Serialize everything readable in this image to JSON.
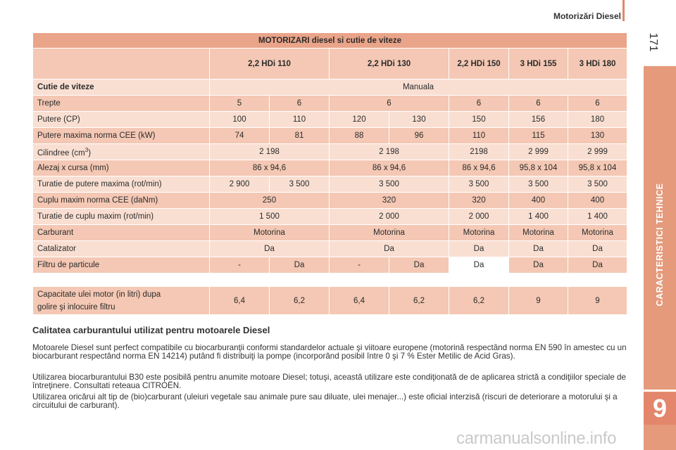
{
  "header": {
    "title": "Motorizări Diesel",
    "page_number": "171"
  },
  "side_tab": {
    "label": "CARACTERISTICI TEHNICE",
    "chapter_number": "9"
  },
  "colors": {
    "accent": "#e3866b",
    "row_dark": "#f4c8b4",
    "row_light": "#f9dfd2",
    "title_row": "#e9a489"
  },
  "spec_table": {
    "title": "MOTORIZARI diesel si cutie de viteze",
    "engines": [
      "2,2 HDi 110",
      "2,2 HDi 130",
      "2,2 HDi 150",
      "3 HDi 155",
      "3 HDi 180"
    ],
    "gearbox_label": "Cutie de viteze",
    "gearbox_value": "Manuala",
    "rows": {
      "trepte": {
        "label": "Trepte",
        "values": [
          "5",
          "6",
          "6",
          "6",
          "6",
          "6"
        ]
      },
      "putere": {
        "label": "Putere (CP)",
        "values": [
          "100",
          "110",
          "120",
          "130",
          "150",
          "156",
          "180"
        ]
      },
      "putere_max": {
        "label": "Putere maxima norma CEE (kW)",
        "values": [
          "74",
          "81",
          "88",
          "96",
          "110",
          "115",
          "130"
        ]
      },
      "cilindree": {
        "label": "Cilindree (cm",
        "label_sup": "3",
        "label_end": ")",
        "values": [
          "2 198",
          "2 198",
          "2198",
          "2 999",
          "2 999"
        ]
      },
      "alezaj": {
        "label": "Alezaj x cursa (mm)",
        "values": [
          "86 x 94,6",
          "86 x 94,6",
          "86 x 94,6",
          "95,8 x 104",
          "95,8 x 104"
        ]
      },
      "turatie_putere": {
        "label": "Turatie de putere maxima (rot/min)",
        "values": [
          "2 900",
          "3 500",
          "3 500",
          "3 500",
          "3 500",
          "3 500"
        ]
      },
      "cuplu": {
        "label": "Cuplu maxim norma CEE (daNm)",
        "values": [
          "250",
          "320",
          "320",
          "400",
          "400"
        ]
      },
      "turatie_cuplu": {
        "label": "Turatie de cuplu maxim (rot/min)",
        "values": [
          "1 500",
          "2 000",
          "2 000",
          "1 400",
          "1 400"
        ]
      },
      "carburant": {
        "label": "Carburant",
        "values": [
          "Motorina",
          "Motorina",
          "Motorina",
          "Motorina",
          "Motorina"
        ]
      },
      "catalizator": {
        "label": "Catalizator",
        "values": [
          "Da",
          "Da",
          "Da",
          "Da",
          "Da"
        ]
      },
      "filtru": {
        "label": "Filtru de particule",
        "values": [
          "-",
          "Da",
          "-",
          "Da",
          "Da",
          "Da",
          "Da"
        ]
      }
    }
  },
  "oil_table": {
    "label_line1": "Capacitate ulei motor (in litri) dupa",
    "label_line2": "golire şi inlocuire filtru",
    "values": [
      "6,4",
      "6,2",
      "6,4",
      "6,2",
      "6,2",
      "9",
      "9"
    ]
  },
  "section": {
    "title": "Calitatea carburantului utilizat pentru motoarele Diesel",
    "paragraphs": [
      "Motoarele Diesel sunt perfect compatibile cu biocarburanţii conformi standardelor actuale şi viitoare europene (motorină respectând norma EN 590 în amestec cu un biocarburant respectând norma EN 14214) putând fi distribuiţi la pompe (incorporând posibil între 0 şi 7 % Ester Metilic de Acid Gras).",
      "Utilizarea biocarburantului B30 este posibilă pentru anumite motoare Diesel; totuşi, această utilizare este condiţionată de de aplicarea strictă a condiţiilor speciale de întreţinere. Consultati reteaua CITROËN.",
      "Utilizarea oricărui alt tip de (bio)carburant (uleiuri vegetale sau animale pure sau diluate, ulei menajer...) este oficial interzisă (riscuri de deteriorare a motorului şi a circuitului de carburant)."
    ]
  },
  "watermark": "carmanualsonline.info"
}
